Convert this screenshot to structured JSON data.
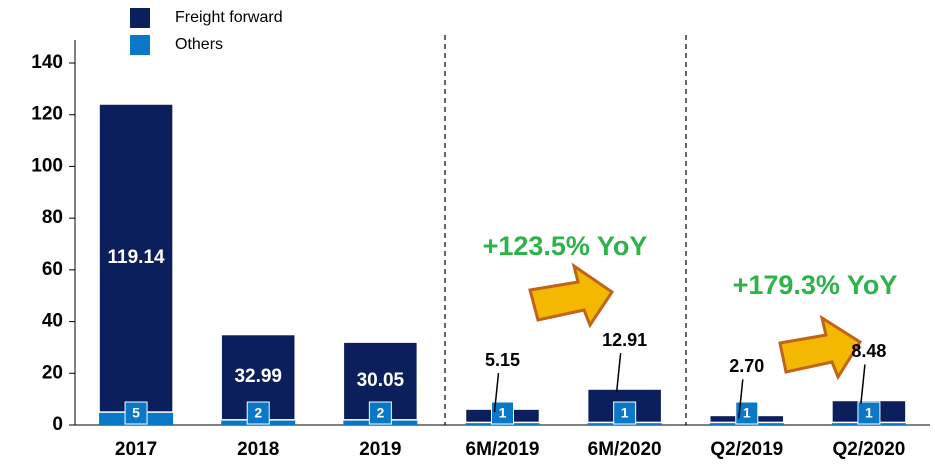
{
  "chart_data": {
    "type": "stacked_bar",
    "categories": [
      "2017",
      "2018",
      "2019",
      "6M/2019",
      "6M/2020",
      "Q2/2019",
      "Q2/2020"
    ],
    "series": [
      {
        "name": "Freight forward",
        "color": "#0a1f5c",
        "values": [
          119.14,
          32.99,
          30.05,
          5.15,
          12.91,
          2.7,
          8.48
        ],
        "value_labels": [
          "119.14",
          "32.99",
          "30.05",
          "5.15",
          "12.91",
          "2.70",
          "8.48"
        ]
      },
      {
        "name": "Others",
        "color": "#0a78c8",
        "values": [
          5,
          2,
          2,
          1,
          1,
          1,
          1
        ]
      }
    ],
    "ylim": [
      0,
      140
    ],
    "yticks": [
      0,
      20,
      40,
      60,
      80,
      100,
      120,
      140
    ],
    "annotations": [
      "+123.5% YoY",
      "+179.3% YoY"
    ]
  }
}
